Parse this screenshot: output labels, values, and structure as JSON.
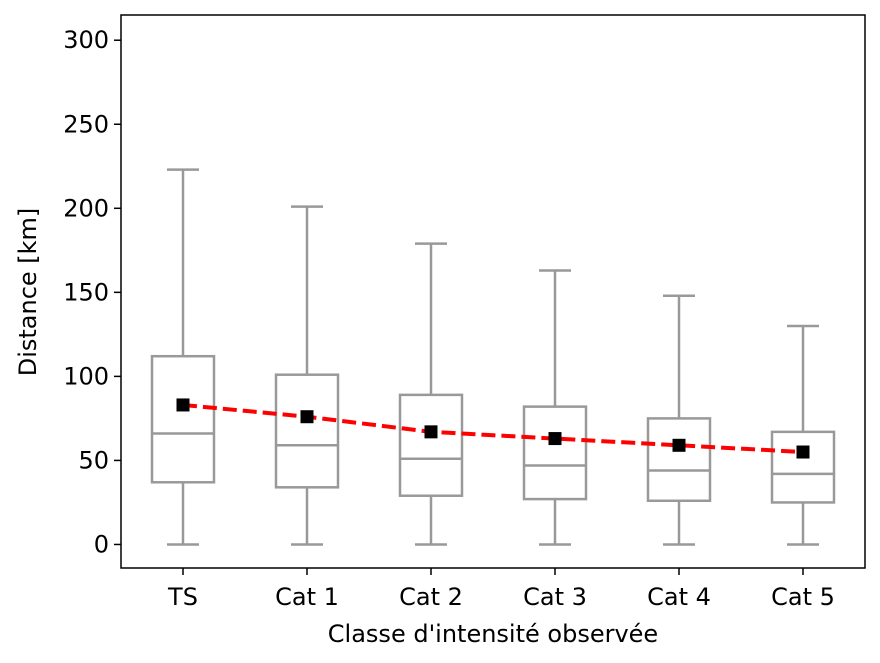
{
  "chart_data": {
    "type": "boxplot",
    "xlabel": "Classe d'intensité observée",
    "ylabel": "Distance [km]",
    "categories": [
      "TS",
      "Cat 1",
      "Cat 2",
      "Cat 3",
      "Cat 4",
      "Cat 5"
    ],
    "ylim": [
      -14,
      315
    ],
    "yticks": [
      0,
      50,
      100,
      150,
      200,
      250,
      300
    ],
    "grid": false,
    "boxes": [
      {
        "whisker_low": 0,
        "q1": 37,
        "median": 66,
        "q3": 112,
        "whisker_high": 223
      },
      {
        "whisker_low": 0,
        "q1": 34,
        "median": 59,
        "q3": 101,
        "whisker_high": 201
      },
      {
        "whisker_low": 0,
        "q1": 29,
        "median": 51,
        "q3": 89,
        "whisker_high": 179
      },
      {
        "whisker_low": 0,
        "q1": 27,
        "median": 47,
        "q3": 82,
        "whisker_high": 163
      },
      {
        "whisker_low": 0,
        "q1": 26,
        "median": 44,
        "q3": 75,
        "whisker_high": 148
      },
      {
        "whisker_low": 0,
        "q1": 25,
        "median": 42,
        "q3": 67,
        "whisker_high": 130
      }
    ],
    "mean_line": {
      "values": [
        83,
        76,
        67,
        63,
        59,
        55
      ]
    },
    "colors": {
      "box": "#999999",
      "mean_marker": "#000000",
      "mean_line": "#ff0000",
      "axes": "#000000"
    }
  }
}
